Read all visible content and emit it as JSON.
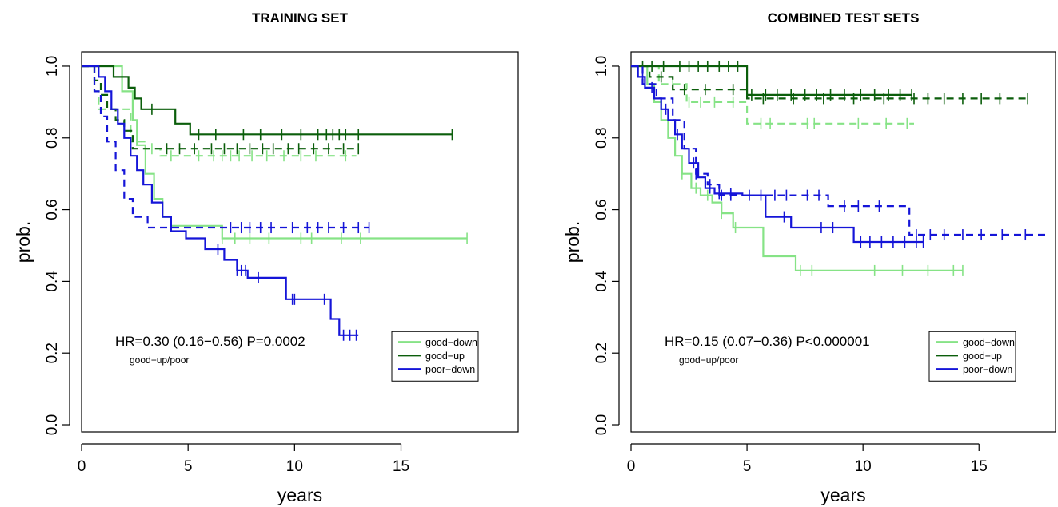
{
  "chart_data": [
    {
      "type": "line",
      "title": "TRAINING SET",
      "xlabel": "years",
      "ylabel": "prob.",
      "xlim": [
        0,
        20.5
      ],
      "ylim": [
        -0.02,
        1.04
      ],
      "x_ticks": [
        "0",
        "5",
        "10",
        "15"
      ],
      "y_ticks": [
        "0.0",
        "0.2",
        "0.4",
        "0.6",
        "0.8",
        "1.0"
      ],
      "annotation": "HR=0.30 (0.16−0.56) P=0.0002",
      "annotation_sub": "good−up/poor",
      "legend": {
        "position": "bottom-right",
        "entries": [
          "good−down",
          "good−up",
          "poor−down"
        ]
      },
      "series": [
        {
          "name": "good−down",
          "color": "#86e386",
          "dashed": false,
          "steps": [
            [
              0,
              1.0
            ],
            [
              1.9,
              0.93
            ],
            [
              2.4,
              0.85
            ],
            [
              2.6,
              0.78
            ],
            [
              3.0,
              0.7
            ],
            [
              3.4,
              0.63
            ],
            [
              3.8,
              0.58
            ],
            [
              4.2,
              0.555
            ],
            [
              6.6,
              0.52
            ],
            [
              18.1,
              0.52
            ]
          ],
          "censor": [
            6.6,
            7.2,
            7.9,
            8.8,
            10.3,
            10.8,
            12.2,
            13.1,
            18.1
          ]
        },
        {
          "name": "good−down",
          "color": "#86e386",
          "dashed": true,
          "steps": [
            [
              0,
              1.0
            ],
            [
              0.6,
              0.93
            ],
            [
              0.8,
              0.88
            ],
            [
              2.3,
              0.79
            ],
            [
              3.0,
              0.77
            ],
            [
              3.7,
              0.75
            ],
            [
              12.9,
              0.75
            ]
          ],
          "censor": [
            3.3,
            4.2,
            5.5,
            6.2,
            6.6,
            7.0,
            7.4,
            8.0,
            8.7,
            9.5,
            10.3,
            11.0,
            12.4
          ]
        },
        {
          "name": "good−up",
          "color": "#0b5e0b",
          "dashed": false,
          "steps": [
            [
              0,
              1.0
            ],
            [
              1.5,
              0.97
            ],
            [
              2.2,
              0.94
            ],
            [
              2.5,
              0.91
            ],
            [
              2.8,
              0.88
            ],
            [
              3.6,
              0.88
            ],
            [
              4.4,
              0.84
            ],
            [
              5.1,
              0.81
            ],
            [
              17.4,
              0.81
            ]
          ],
          "censor": [
            3.3,
            5.5,
            6.3,
            7.6,
            8.4,
            9.4,
            10.3,
            11.1,
            11.5,
            11.8,
            12.1,
            12.4,
            13.0,
            17.4
          ]
        },
        {
          "name": "good−up",
          "color": "#0b5e0b",
          "dashed": true,
          "steps": [
            [
              0,
              1.0
            ],
            [
              0.6,
              0.96
            ],
            [
              0.9,
              0.92
            ],
            [
              1.2,
              0.88
            ],
            [
              1.6,
              0.85
            ],
            [
              2.0,
              0.82
            ],
            [
              2.4,
              0.77
            ],
            [
              13.0,
              0.77
            ]
          ],
          "censor": [
            4.0,
            4.6,
            5.3,
            6.1,
            6.7,
            7.3,
            7.9,
            8.5,
            9.0,
            9.7,
            10.2,
            10.9,
            11.6,
            12.3,
            13.0
          ]
        },
        {
          "name": "poor−down",
          "color": "#1515d8",
          "dashed": false,
          "steps": [
            [
              0,
              1.0
            ],
            [
              0.8,
              0.97
            ],
            [
              1.1,
              0.93
            ],
            [
              1.4,
              0.88
            ],
            [
              1.7,
              0.84
            ],
            [
              2.0,
              0.8
            ],
            [
              2.3,
              0.75
            ],
            [
              2.6,
              0.71
            ],
            [
              2.9,
              0.67
            ],
            [
              3.3,
              0.62
            ],
            [
              3.8,
              0.58
            ],
            [
              4.2,
              0.54
            ],
            [
              4.9,
              0.52
            ],
            [
              5.8,
              0.49
            ],
            [
              6.7,
              0.46
            ],
            [
              7.3,
              0.43
            ],
            [
              7.8,
              0.41
            ],
            [
              9.6,
              0.35
            ],
            [
              11.7,
              0.295
            ],
            [
              12.1,
              0.25
            ],
            [
              13.0,
              0.25
            ]
          ],
          "censor": [
            6.4,
            7.3,
            7.5,
            7.7,
            8.3,
            9.9,
            10.0,
            11.4,
            12.3,
            12.6,
            12.9
          ]
        },
        {
          "name": "poor−down",
          "color": "#1515d8",
          "dashed": true,
          "steps": [
            [
              0,
              1.0
            ],
            [
              0.6,
              0.93
            ],
            [
              0.9,
              0.86
            ],
            [
              1.2,
              0.79
            ],
            [
              1.6,
              0.71
            ],
            [
              2.0,
              0.63
            ],
            [
              2.4,
              0.58
            ],
            [
              3.1,
              0.55
            ],
            [
              13.5,
              0.55
            ]
          ],
          "censor": [
            7.0,
            7.5,
            7.9,
            8.4,
            8.9,
            9.9,
            10.6,
            11.1,
            11.6,
            12.3,
            13.0,
            13.5
          ]
        }
      ]
    },
    {
      "type": "line",
      "title": "COMBINED TEST SETS",
      "xlabel": "years",
      "ylabel": "prob.",
      "xlim": [
        0,
        18.3
      ],
      "ylim": [
        -0.02,
        1.04
      ],
      "x_ticks": [
        "0",
        "5",
        "10",
        "15"
      ],
      "y_ticks": [
        "0.0",
        "0.2",
        "0.4",
        "0.6",
        "0.8",
        "1.0"
      ],
      "annotation": "HR=0.15 (0.07−0.36) P<0.000001",
      "annotation_sub": "good−up/poor",
      "legend": {
        "position": "bottom-right",
        "entries": [
          "good−down",
          "good−up",
          "poor−down"
        ]
      },
      "series": [
        {
          "name": "good−down",
          "color": "#86e386",
          "dashed": false,
          "steps": [
            [
              0,
              1.0
            ],
            [
              0.7,
              0.95
            ],
            [
              1.0,
              0.9
            ],
            [
              1.3,
              0.85
            ],
            [
              1.6,
              0.8
            ],
            [
              1.9,
              0.75
            ],
            [
              2.2,
              0.7
            ],
            [
              2.6,
              0.66
            ],
            [
              3.0,
              0.64
            ],
            [
              3.5,
              0.62
            ],
            [
              3.9,
              0.59
            ],
            [
              4.4,
              0.55
            ],
            [
              5.7,
              0.47
            ],
            [
              7.1,
              0.43
            ],
            [
              14.3,
              0.43
            ]
          ],
          "censor": [
            2.2,
            2.8,
            3.3,
            3.9,
            4.5,
            7.3,
            7.8,
            10.5,
            11.7,
            12.8,
            13.9,
            14.3
          ]
        },
        {
          "name": "good−down",
          "color": "#86e386",
          "dashed": true,
          "steps": [
            [
              0,
              1.0
            ],
            [
              1.2,
              0.95
            ],
            [
              2.4,
              0.9
            ],
            [
              5.0,
              0.84
            ],
            [
              12.2,
              0.84
            ]
          ],
          "censor": [
            1.8,
            2.5,
            3.0,
            3.6,
            4.4,
            5.6,
            6.0,
            7.6,
            7.9,
            9.8,
            11.0,
            11.9
          ]
        },
        {
          "name": "good−up",
          "color": "#0b5e0b",
          "dashed": false,
          "steps": [
            [
              0,
              1.0
            ],
            [
              5.0,
              0.92
            ],
            [
              12.1,
              0.92
            ]
          ],
          "censor": [
            0.5,
            0.9,
            1.4,
            2.1,
            2.5,
            2.9,
            3.3,
            3.8,
            4.2,
            4.6,
            5.2,
            5.8,
            6.3,
            6.9,
            7.5,
            8.0,
            8.6,
            9.2,
            9.9,
            10.5,
            11.1,
            11.6,
            12.1
          ]
        },
        {
          "name": "good−up",
          "color": "#0b5e0b",
          "dashed": true,
          "steps": [
            [
              0,
              1.0
            ],
            [
              0.8,
              0.97
            ],
            [
              1.8,
              0.935
            ],
            [
              5.0,
              0.91
            ],
            [
              17.1,
              0.91
            ]
          ],
          "censor": [
            1.3,
            2.3,
            3.2,
            4.4,
            5.7,
            7.0,
            8.3,
            9.6,
            10.9,
            12.2,
            12.8,
            13.5,
            14.3,
            15.1,
            15.9,
            17.1
          ]
        },
        {
          "name": "poor−down",
          "color": "#1515d8",
          "dashed": false,
          "steps": [
            [
              0,
              1.0
            ],
            [
              0.3,
              0.97
            ],
            [
              0.6,
              0.94
            ],
            [
              1.0,
              0.91
            ],
            [
              1.3,
              0.88
            ],
            [
              1.6,
              0.85
            ],
            [
              1.9,
              0.81
            ],
            [
              2.2,
              0.77
            ],
            [
              2.5,
              0.73
            ],
            [
              2.9,
              0.69
            ],
            [
              3.2,
              0.66
            ],
            [
              3.6,
              0.645
            ],
            [
              4.8,
              0.64
            ],
            [
              5.8,
              0.58
            ],
            [
              6.9,
              0.55
            ],
            [
              8.5,
              0.55
            ],
            [
              9.6,
              0.51
            ],
            [
              12.6,
              0.51
            ]
          ],
          "censor": [
            0.5,
            0.9,
            1.5,
            2.0,
            2.7,
            3.4,
            3.8,
            4.3,
            6.6,
            8.2,
            8.7,
            9.9,
            10.3,
            10.8,
            11.3,
            11.8,
            12.3,
            12.6
          ]
        },
        {
          "name": "poor−down",
          "color": "#1515d8",
          "dashed": true,
          "steps": [
            [
              0,
              1.0
            ],
            [
              0.5,
              0.95
            ],
            [
              1.1,
              0.91
            ],
            [
              1.8,
              0.85
            ],
            [
              2.3,
              0.77
            ],
            [
              2.8,
              0.7
            ],
            [
              3.3,
              0.67
            ],
            [
              3.8,
              0.64
            ],
            [
              8.5,
              0.61
            ],
            [
              10.2,
              0.61
            ],
            [
              12.0,
              0.53
            ],
            [
              18.0,
              0.53
            ]
          ],
          "censor": [
            2.8,
            3.4,
            3.9,
            4.3,
            5.1,
            5.6,
            6.2,
            6.7,
            7.6,
            8.1,
            9.2,
            9.8,
            10.7,
            12.3,
            12.9,
            13.5,
            14.3,
            15.1,
            16.0,
            17.0
          ]
        }
      ]
    }
  ]
}
